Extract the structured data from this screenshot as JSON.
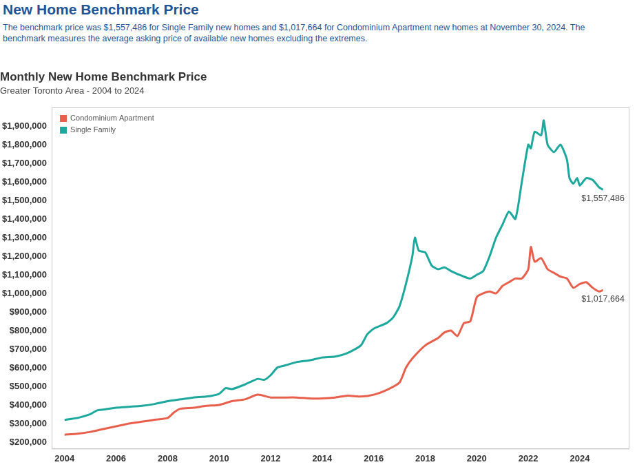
{
  "header": {
    "title": "New Home Benchmark Price",
    "text": "The benchmark price was $1,557,486 for Single Family new homes and $1,017,664 for Condominium Apartment new homes at November 30, 2024. The benchmark measures the average asking price of available new homes excluding the extremes."
  },
  "chart_data": {
    "type": "line",
    "title": "Monthly New Home Benchmark Price",
    "subtitle": "Greater Toronto Area - 2004 to 2024",
    "series": [
      {
        "name": "Condominium Apartment",
        "color": "#e8604c",
        "x": [
          2004.0,
          2004.5,
          2005.0,
          2005.5,
          2006.0,
          2006.5,
          2007.0,
          2007.5,
          2008.0,
          2008.25,
          2008.5,
          2009.0,
          2009.5,
          2010.0,
          2010.5,
          2011.0,
          2011.5,
          2012.0,
          2012.5,
          2013.0,
          2013.5,
          2014.0,
          2014.5,
          2015.0,
          2015.5,
          2016.0,
          2016.5,
          2017.0,
          2017.25,
          2017.5,
          2018.0,
          2018.5,
          2018.75,
          2019.0,
          2019.25,
          2019.5,
          2019.75,
          2020.0,
          2020.25,
          2020.5,
          2020.75,
          2021.0,
          2021.25,
          2021.5,
          2021.75,
          2022.0,
          2022.1,
          2022.25,
          2022.5,
          2022.75,
          2023.0,
          2023.25,
          2023.5,
          2023.75,
          2024.0,
          2024.25,
          2024.5,
          2024.75,
          2024.9
        ],
        "values": [
          240000,
          245000,
          255000,
          270000,
          285000,
          300000,
          310000,
          320000,
          330000,
          360000,
          380000,
          385000,
          395000,
          400000,
          420000,
          430000,
          455000,
          440000,
          440000,
          440000,
          435000,
          435000,
          440000,
          450000,
          445000,
          455000,
          480000,
          520000,
          600000,
          650000,
          720000,
          760000,
          790000,
          800000,
          770000,
          840000,
          850000,
          980000,
          1000000,
          1010000,
          1000000,
          1040000,
          1060000,
          1080000,
          1080000,
          1130000,
          1250000,
          1170000,
          1190000,
          1130000,
          1110000,
          1090000,
          1080000,
          1030000,
          1050000,
          1060000,
          1030000,
          1010000,
          1017664
        ]
      },
      {
        "name": "Single Family",
        "color": "#1ca89c",
        "x": [
          2004.0,
          2004.5,
          2005.0,
          2005.25,
          2005.5,
          2006.0,
          2006.5,
          2007.0,
          2007.5,
          2008.0,
          2008.5,
          2009.0,
          2009.5,
          2010.0,
          2010.25,
          2010.5,
          2011.0,
          2011.5,
          2011.75,
          2012.0,
          2012.25,
          2012.5,
          2013.0,
          2013.5,
          2014.0,
          2014.5,
          2015.0,
          2015.5,
          2015.75,
          2016.0,
          2016.5,
          2016.75,
          2017.0,
          2017.25,
          2017.5,
          2017.6,
          2017.75,
          2018.0,
          2018.25,
          2018.5,
          2018.75,
          2019.0,
          2019.5,
          2019.75,
          2020.0,
          2020.25,
          2020.5,
          2020.75,
          2021.0,
          2021.25,
          2021.5,
          2021.75,
          2022.0,
          2022.1,
          2022.25,
          2022.5,
          2022.6,
          2022.75,
          2023.0,
          2023.25,
          2023.5,
          2023.6,
          2023.75,
          2023.9,
          2024.0,
          2024.25,
          2024.5,
          2024.75,
          2024.9
        ],
        "values": [
          320000,
          330000,
          350000,
          370000,
          375000,
          385000,
          390000,
          395000,
          405000,
          420000,
          430000,
          440000,
          445000,
          460000,
          490000,
          485000,
          510000,
          540000,
          535000,
          560000,
          600000,
          610000,
          630000,
          640000,
          655000,
          660000,
          680000,
          720000,
          780000,
          810000,
          840000,
          870000,
          930000,
          1050000,
          1200000,
          1300000,
          1230000,
          1220000,
          1150000,
          1130000,
          1140000,
          1120000,
          1090000,
          1080000,
          1100000,
          1120000,
          1200000,
          1300000,
          1370000,
          1440000,
          1400000,
          1600000,
          1800000,
          1780000,
          1870000,
          1850000,
          1930000,
          1800000,
          1760000,
          1800000,
          1720000,
          1620000,
          1590000,
          1620000,
          1580000,
          1620000,
          1610000,
          1570000,
          1557486
        ]
      }
    ],
    "annotations": [
      {
        "text": "$1,557,486",
        "series": "Single Family"
      },
      {
        "text": "$1,017,664",
        "series": "Condominium Apartment"
      }
    ],
    "xlim": [
      2003.5,
      2025.9
    ],
    "xticks": [
      2004,
      2006,
      2008,
      2010,
      2012,
      2014,
      2016,
      2018,
      2020,
      2022,
      2024
    ],
    "ylim": [
      165000,
      2000000
    ],
    "yticks": [
      {
        "value": 200000,
        "label": "$200,000"
      },
      {
        "value": 300000,
        "label": "$300,000"
      },
      {
        "value": 400000,
        "label": "$400,000"
      },
      {
        "value": 500000,
        "label": "$500,000"
      },
      {
        "value": 600000,
        "label": "$600,000"
      },
      {
        "value": 700000,
        "label": "$700,000"
      },
      {
        "value": 800000,
        "label": "$800,000"
      },
      {
        "value": 900000,
        "label": "$900,000"
      },
      {
        "value": 1000000,
        "label": "$1,000,000"
      },
      {
        "value": 1100000,
        "label": "$1,100,000"
      },
      {
        "value": 1200000,
        "label": "$1,200,000"
      },
      {
        "value": 1300000,
        "label": "$1,300,000"
      },
      {
        "value": 1400000,
        "label": "$1,400,000"
      },
      {
        "value": 1500000,
        "label": "$1,500,000"
      },
      {
        "value": 1600000,
        "label": "$1,600,000"
      },
      {
        "value": 1700000,
        "label": "$1,700,000"
      },
      {
        "value": 1800000,
        "label": "$1,800,000"
      },
      {
        "value": 1900000,
        "label": "$1,900,000"
      }
    ],
    "grid": false,
    "legend": "upper left"
  }
}
